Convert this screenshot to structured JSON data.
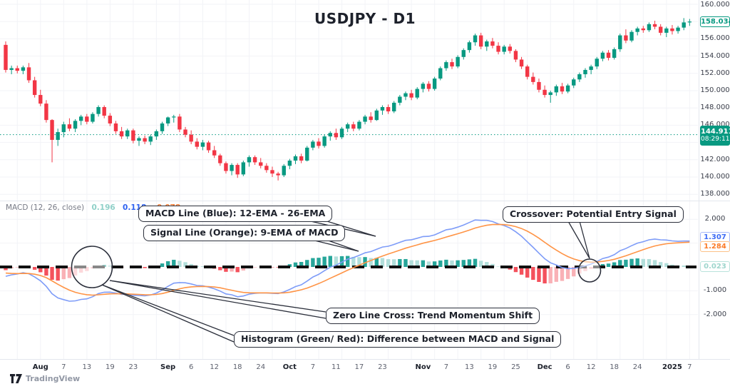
{
  "title": "USDJPY - D1",
  "indicator": {
    "name": "MACD (12, 26, close)",
    "values": [
      {
        "text": "0.196",
        "role": "histogram"
      },
      {
        "text": "0.118",
        "role": "macd"
      },
      {
        "text": "-0.078",
        "role": "signal"
      }
    ]
  },
  "annotations": [
    {
      "label": "MACD Line (Blue): 12-EMA - 26-EMA"
    },
    {
      "label": "Signal Line (Orange): 9-EMA of MACD"
    },
    {
      "label": "Crossover: Potential Entry Signal"
    },
    {
      "label": "Zero Line Cross: Trend Momentum Shift"
    },
    {
      "label": "Histogram (Green/ Red): Difference between MACD and Signal"
    }
  ],
  "price_axis": {
    "ticks": [
      {
        "label": "160.000",
        "value": 160
      },
      {
        "label": "156.000",
        "value": 156
      },
      {
        "label": "154.000",
        "value": 154
      },
      {
        "label": "152.000",
        "value": 152
      },
      {
        "label": "150.000",
        "value": 150
      },
      {
        "label": "148.000",
        "value": 148
      },
      {
        "label": "146.000",
        "value": 146
      },
      {
        "label": "142.000",
        "value": 142
      },
      {
        "label": "140.000",
        "value": 140
      },
      {
        "label": "138.000",
        "value": 138
      }
    ],
    "last_price_badge": {
      "value": "158.034",
      "price": 158.034
    },
    "current_price_badge": {
      "value": "144.911",
      "time": "08:29:11",
      "price": 144.911
    }
  },
  "macd_axis": {
    "ticks": [
      {
        "label": "2.000",
        "value": 2
      },
      {
        "label": "1.000",
        "value": 1
      },
      {
        "label": "-1.000",
        "value": -1
      },
      {
        "label": "-2.000",
        "value": -2
      }
    ],
    "badges": [
      {
        "value": "1.307",
        "role": "macd"
      },
      {
        "value": "1.284",
        "role": "signal"
      },
      {
        "value": "0.023",
        "role": "histogram"
      }
    ]
  },
  "time_axis": {
    "ticks": [
      {
        "label": "Aug",
        "i": 6,
        "kind": "month"
      },
      {
        "label": "7",
        "i": 10,
        "kind": "day"
      },
      {
        "label": "13",
        "i": 14,
        "kind": "day"
      },
      {
        "label": "19",
        "i": 18,
        "kind": "day"
      },
      {
        "label": "23",
        "i": 22,
        "kind": "day"
      },
      {
        "label": "Sep",
        "i": 28,
        "kind": "month"
      },
      {
        "label": "6",
        "i": 32,
        "kind": "day"
      },
      {
        "label": "12",
        "i": 36,
        "kind": "day"
      },
      {
        "label": "18",
        "i": 40,
        "kind": "day"
      },
      {
        "label": "24",
        "i": 44,
        "kind": "day"
      },
      {
        "label": "Oct",
        "i": 49,
        "kind": "month"
      },
      {
        "label": "7",
        "i": 53,
        "kind": "day"
      },
      {
        "label": "11",
        "i": 57,
        "kind": "day"
      },
      {
        "label": "17",
        "i": 61,
        "kind": "day"
      },
      {
        "label": "23",
        "i": 65,
        "kind": "day"
      },
      {
        "label": "Nov",
        "i": 72,
        "kind": "month"
      },
      {
        "label": "7",
        "i": 76,
        "kind": "day"
      },
      {
        "label": "13",
        "i": 80,
        "kind": "day"
      },
      {
        "label": "19",
        "i": 84,
        "kind": "day"
      },
      {
        "label": "25",
        "i": 88,
        "kind": "day"
      },
      {
        "label": "Dec",
        "i": 93,
        "kind": "month"
      },
      {
        "label": "6",
        "i": 97,
        "kind": "day"
      },
      {
        "label": "12",
        "i": 101,
        "kind": "day"
      },
      {
        "label": "18",
        "i": 105,
        "kind": "day"
      },
      {
        "label": "24",
        "i": 109,
        "kind": "day"
      },
      {
        "label": "2025",
        "i": 115,
        "kind": "year"
      },
      {
        "label": "7",
        "i": 118,
        "kind": "day"
      }
    ]
  },
  "footer": {
    "brand": "TradingView"
  },
  "chart_data": {
    "type": "candlestick+macd",
    "symbol": "USDJPY",
    "timeframe": "D1",
    "macd_settings": {
      "fast": 12,
      "slow": 26,
      "signal": 9,
      "source": "close"
    },
    "price_range": [
      138,
      160
    ],
    "macd_axis_range": [
      -2,
      2
    ],
    "colors": {
      "up": "#089981",
      "down": "#f23645",
      "macd_line": "#7e9cf8",
      "signal_line": "#ff9446",
      "hist_pos": "#26a69a",
      "hist_pos_weak": "#b2dfdb",
      "hist_neg": "#f4515c",
      "hist_neg_weak": "#f9b1b6",
      "zero_line": "#111111",
      "current_price_line": "#089981",
      "grid": "#f2f3f7",
      "separator": "#e4e7ee"
    },
    "candles": [
      [
        155.3,
        155.7,
        152.1,
        152.4
      ],
      [
        152.4,
        152.9,
        151.9,
        152.6
      ],
      [
        152.6,
        152.9,
        152.0,
        152.3
      ],
      [
        152.3,
        152.9,
        151.9,
        152.7
      ],
      [
        152.7,
        153.2,
        150.9,
        151.2
      ],
      [
        151.2,
        151.6,
        149.2,
        149.5
      ],
      [
        149.5,
        150.1,
        148.2,
        148.5
      ],
      [
        148.5,
        148.9,
        146.3,
        146.6
      ],
      [
        146.6,
        146.7,
        141.7,
        144.3
      ],
      [
        144.3,
        145.6,
        143.6,
        145.2
      ],
      [
        145.2,
        146.4,
        144.6,
        146.1
      ],
      [
        146.1,
        146.8,
        145.3,
        145.6
      ],
      [
        145.6,
        146.7,
        145.2,
        146.5
      ],
      [
        146.5,
        147.2,
        146.0,
        147.0
      ],
      [
        147.0,
        147.3,
        146.1,
        146.4
      ],
      [
        146.4,
        147.5,
        146.2,
        147.3
      ],
      [
        147.3,
        148.3,
        147.0,
        148.1
      ],
      [
        148.1,
        148.3,
        146.8,
        147.1
      ],
      [
        147.1,
        147.4,
        145.9,
        146.2
      ],
      [
        146.2,
        146.5,
        145.0,
        145.3
      ],
      [
        145.3,
        145.8,
        144.4,
        144.7
      ],
      [
        144.7,
        145.6,
        144.4,
        145.4
      ],
      [
        145.4,
        145.6,
        143.9,
        144.2
      ],
      [
        144.2,
        144.7,
        143.6,
        144.5
      ],
      [
        144.5,
        144.8,
        143.8,
        144.1
      ],
      [
        144.1,
        144.9,
        143.7,
        144.7
      ],
      [
        144.7,
        145.5,
        144.3,
        145.3
      ],
      [
        145.3,
        146.4,
        145.0,
        146.2
      ],
      [
        146.2,
        147.0,
        145.9,
        146.9
      ],
      [
        146.9,
        147.2,
        146.3,
        147.0
      ],
      [
        147.0,
        147.3,
        145.2,
        145.5
      ],
      [
        145.5,
        145.8,
        144.6,
        144.9
      ],
      [
        144.9,
        145.4,
        143.8,
        144.1
      ],
      [
        144.1,
        144.5,
        143.2,
        143.5
      ],
      [
        143.5,
        144.3,
        143.1,
        144.0
      ],
      [
        144.0,
        144.2,
        142.8,
        143.1
      ],
      [
        143.1,
        143.6,
        142.2,
        142.5
      ],
      [
        142.5,
        142.7,
        141.3,
        141.6
      ],
      [
        141.6,
        141.8,
        140.4,
        140.7
      ],
      [
        140.7,
        141.6,
        140.2,
        141.4
      ],
      [
        141.4,
        141.6,
        139.9,
        140.3
      ],
      [
        140.3,
        141.9,
        140.1,
        141.7
      ],
      [
        141.7,
        142.5,
        141.2,
        142.3
      ],
      [
        142.3,
        142.5,
        141.4,
        141.7
      ],
      [
        141.7,
        142.2,
        141.0,
        141.3
      ],
      [
        141.3,
        141.6,
        140.5,
        140.8
      ],
      [
        140.8,
        141.2,
        140.0,
        140.4
      ],
      [
        140.4,
        140.6,
        139.6,
        140.2
      ],
      [
        140.2,
        141.5,
        140.0,
        141.3
      ],
      [
        141.3,
        142.1,
        140.9,
        141.9
      ],
      [
        141.9,
        142.6,
        141.5,
        142.4
      ],
      [
        142.4,
        142.7,
        141.6,
        141.9
      ],
      [
        141.9,
        143.6,
        141.8,
        143.4
      ],
      [
        143.4,
        144.3,
        143.1,
        144.1
      ],
      [
        144.1,
        144.5,
        143.3,
        143.6
      ],
      [
        143.6,
        144.9,
        143.4,
        144.7
      ],
      [
        144.7,
        145.3,
        144.2,
        145.1
      ],
      [
        145.1,
        145.6,
        144.3,
        144.6
      ],
      [
        144.6,
        145.8,
        144.4,
        145.6
      ],
      [
        145.6,
        146.3,
        145.2,
        146.1
      ],
      [
        146.1,
        146.4,
        145.3,
        145.6
      ],
      [
        145.6,
        146.6,
        145.4,
        146.4
      ],
      [
        146.4,
        147.2,
        146.1,
        147.0
      ],
      [
        147.0,
        147.5,
        146.3,
        146.6
      ],
      [
        146.6,
        147.9,
        146.5,
        147.7
      ],
      [
        147.7,
        148.3,
        147.2,
        148.1
      ],
      [
        148.1,
        148.4,
        147.3,
        147.6
      ],
      [
        147.6,
        148.8,
        147.4,
        148.6
      ],
      [
        148.6,
        149.5,
        148.3,
        149.3
      ],
      [
        149.3,
        149.9,
        148.9,
        149.7
      ],
      [
        149.7,
        150.1,
        148.9,
        149.2
      ],
      [
        149.2,
        150.4,
        149.0,
        150.2
      ],
      [
        150.2,
        151.0,
        149.8,
        150.8
      ],
      [
        150.8,
        151.1,
        149.9,
        150.2
      ],
      [
        150.2,
        151.6,
        150.0,
        151.4
      ],
      [
        151.4,
        152.8,
        151.2,
        152.6
      ],
      [
        152.6,
        153.5,
        152.3,
        153.3
      ],
      [
        153.3,
        153.7,
        152.5,
        152.8
      ],
      [
        152.8,
        154.1,
        152.6,
        153.9
      ],
      [
        153.9,
        154.9,
        153.6,
        154.7
      ],
      [
        154.7,
        155.8,
        154.4,
        155.6
      ],
      [
        155.6,
        156.6,
        155.2,
        156.4
      ],
      [
        156.4,
        156.7,
        154.8,
        155.1
      ],
      [
        155.1,
        155.9,
        154.6,
        155.7
      ],
      [
        155.7,
        156.1,
        154.9,
        155.2
      ],
      [
        155.2,
        155.6,
        154.2,
        154.5
      ],
      [
        154.5,
        155.3,
        154.2,
        155.1
      ],
      [
        155.1,
        155.4,
        154.3,
        154.6
      ],
      [
        154.6,
        154.8,
        153.3,
        153.6
      ],
      [
        153.6,
        153.9,
        152.5,
        152.8
      ],
      [
        152.8,
        153.0,
        151.3,
        151.6
      ],
      [
        151.6,
        152.1,
        150.7,
        151.0
      ],
      [
        151.0,
        151.4,
        149.8,
        150.1
      ],
      [
        150.1,
        150.6,
        149.2,
        149.5
      ],
      [
        149.5,
        150.0,
        148.6,
        149.8
      ],
      [
        149.8,
        150.7,
        149.4,
        150.5
      ],
      [
        150.5,
        150.9,
        149.6,
        149.9
      ],
      [
        149.9,
        150.8,
        149.7,
        150.6
      ],
      [
        150.6,
        151.5,
        150.3,
        151.3
      ],
      [
        151.3,
        152.1,
        151.0,
        151.9
      ],
      [
        151.9,
        152.6,
        151.5,
        152.4
      ],
      [
        152.4,
        153.0,
        151.9,
        152.8
      ],
      [
        152.8,
        153.9,
        152.5,
        153.7
      ],
      [
        153.7,
        154.6,
        153.4,
        154.4
      ],
      [
        154.4,
        154.7,
        153.5,
        153.8
      ],
      [
        153.8,
        155.0,
        153.6,
        154.8
      ],
      [
        154.8,
        156.6,
        154.5,
        156.4
      ],
      [
        156.4,
        157.1,
        155.5,
        155.8
      ],
      [
        155.8,
        157.0,
        155.6,
        156.8
      ],
      [
        156.8,
        157.4,
        156.4,
        157.2
      ],
      [
        157.2,
        157.5,
        156.7,
        157.0
      ],
      [
        157.0,
        157.9,
        156.8,
        157.7
      ],
      [
        157.7,
        158.1,
        157.1,
        157.4
      ],
      [
        157.4,
        157.7,
        156.4,
        156.7
      ],
      [
        156.7,
        157.4,
        156.2,
        157.2
      ],
      [
        157.2,
        157.6,
        156.5,
        156.9
      ],
      [
        156.9,
        157.5,
        156.6,
        157.3
      ],
      [
        157.3,
        158.4,
        157.0,
        157.9
      ],
      [
        157.9,
        158.3,
        157.5,
        158.0
      ]
    ]
  }
}
